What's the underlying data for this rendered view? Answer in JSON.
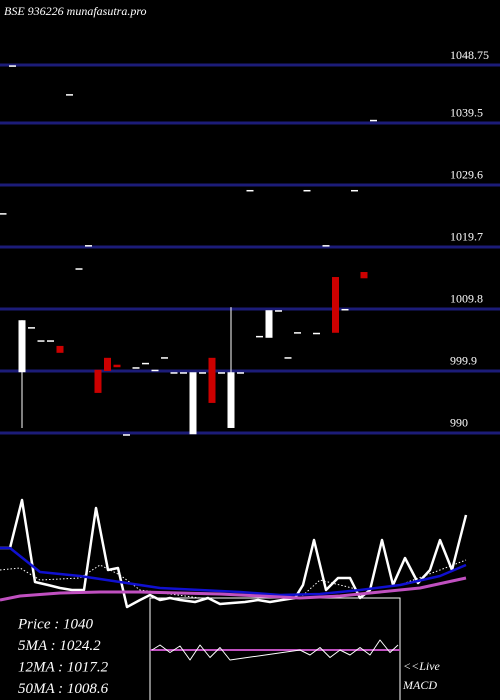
{
  "chart_data": [
    {
      "type": "candlestick",
      "title": "BSE 936226  munafasutra.pro",
      "open": [
        1025.1,
        1048.7,
        999.7,
        1006.9,
        1004.8,
        1004.8,
        1003.9,
        1044.1,
        1016.3,
        1020.0,
        1000.1,
        1002.0,
        1000.9,
        989.8,
        1000.5,
        1001.2,
        1000.1,
        1002.1,
        999.7,
        999.7,
        989.8,
        999.7,
        1002.0,
        999.7,
        990.8,
        999.7,
        1028.8,
        1005.5,
        1005.2,
        1009.6,
        1002.1,
        1006.1,
        1028.8,
        1006.0,
        1020.0,
        1014.9,
        1009.8,
        1028.8,
        1015.7,
        1040.0
      ],
      "high": [
        1025.1,
        1048.7,
        1008.0,
        1006.9,
        1004.8,
        1004.8,
        1003.9,
        1044.1,
        1016.3,
        1020.0,
        1000.1,
        1002.0,
        1000.9,
        989.8,
        1000.5,
        1001.2,
        1000.1,
        1002.1,
        999.7,
        999.7,
        999.7,
        999.7,
        1002.0,
        999.7,
        1010.1,
        999.7,
        1028.8,
        1005.5,
        1009.6,
        1009.6,
        1002.1,
        1006.1,
        1028.8,
        1006.0,
        1020.0,
        1014.9,
        1009.8,
        1028.8,
        1015.7,
        1040.0
      ],
      "low": [
        1025.1,
        1048.7,
        990.8,
        1006.9,
        1004.8,
        1004.8,
        1002.8,
        1044.1,
        1016.3,
        1020.0,
        996.4,
        999.9,
        1000.5,
        989.8,
        1000.5,
        1001.2,
        1000.1,
        1002.1,
        999.7,
        999.7,
        989.8,
        999.7,
        994.8,
        999.7,
        990.8,
        999.7,
        1028.8,
        1005.5,
        1005.2,
        1009.6,
        1002.1,
        1006.1,
        1028.8,
        1006.0,
        1020.0,
        1006.0,
        1009.8,
        1028.8,
        1014.7,
        1040.0
      ],
      "close": [
        1025.1,
        1048.7,
        1008.0,
        1006.9,
        1004.8,
        1004.8,
        1002.8,
        1044.1,
        1016.3,
        1020.0,
        996.4,
        999.9,
        1000.5,
        989.8,
        1000.5,
        1001.2,
        1000.1,
        1002.1,
        999.7,
        999.7,
        999.7,
        999.7,
        994.8,
        999.7,
        999.7,
        999.7,
        1028.8,
        1005.5,
        1009.6,
        1009.6,
        1002.1,
        1006.1,
        1028.8,
        1006.0,
        1020.0,
        1006.0,
        1009.8,
        1028.8,
        1014.7,
        1040.0
      ],
      "up_color": "#ffffff",
      "down_color": "#cc0000",
      "ylim": [
        988.88,
        1059.13
      ],
      "yticks": [
        1048.75,
        1039.5,
        1029.6,
        1019.7,
        1009.8,
        999.9,
        990
      ],
      "grid": true,
      "grid_color": "#1c1c78"
    },
    {
      "type": "line",
      "annotations": [
        "Price   : 1040",
        "5MA : 1024.2",
        "12MA : 1017.2",
        "50MA : 1008.6"
      ],
      "xlim": [
        0,
        500
      ],
      "ylim": [
        0,
        100
      ],
      "series": [
        {
          "color": "#ffffff",
          "width": 2.5,
          "x": [
            0,
            10,
            22,
            35,
            48,
            60,
            72,
            84,
            96,
            108,
            118,
            127,
            140,
            150,
            160,
            170,
            180,
            195,
            208,
            220,
            232,
            245,
            258,
            270,
            282,
            295,
            303,
            314,
            326,
            338,
            350,
            360,
            370,
            382,
            393,
            405,
            418,
            430,
            440,
            452,
            466
          ],
          "values": [
            51.7,
            51.7,
            91.7,
            23.3,
            20.8,
            18.3,
            16.7,
            16.7,
            85,
            33.3,
            35,
            2.5,
            8.3,
            12.5,
            8.3,
            10,
            8.3,
            6.7,
            10,
            5,
            5.8,
            6.7,
            8.3,
            6.7,
            8.3,
            10,
            20.8,
            58.3,
            16.7,
            26.7,
            26.7,
            10,
            16.7,
            58.3,
            20.8,
            43.3,
            22.5,
            33.3,
            58.3,
            33.3,
            79.2
          ]
        },
        {
          "color": "#ffffff",
          "width": 1,
          "dashed": true,
          "x": [
            0,
            20,
            40,
            80,
            100,
            120,
            140,
            200,
            300,
            320,
            360,
            400,
            440,
            466
          ],
          "values": [
            33.3,
            35,
            25,
            26.7,
            37.5,
            29.2,
            16.7,
            10,
            10,
            25,
            16.7,
            20.8,
            33.3,
            41.7
          ]
        },
        {
          "color": "#1010d0",
          "width": 2.5,
          "x": [
            0,
            10,
            40,
            80,
            120,
            160,
            200,
            240,
            280,
            320,
            360,
            400,
            440,
            466
          ],
          "values": [
            51.7,
            51.7,
            31.7,
            28.3,
            23.3,
            18.3,
            16.7,
            15,
            12.5,
            13.3,
            16.7,
            20.8,
            28.3,
            37.5
          ]
        },
        {
          "color": "#c050c0",
          "width": 3,
          "x": [
            0,
            20,
            60,
            100,
            140,
            180,
            220,
            260,
            300,
            340,
            380,
            420,
            466
          ],
          "values": [
            8.3,
            11.7,
            14.2,
            15,
            15,
            14.2,
            13.3,
            11.7,
            10,
            11.7,
            15,
            18.3,
            26.7
          ]
        }
      ]
    },
    {
      "type": "line",
      "annotations": [
        "<<Live",
        "MACD"
      ],
      "xlim": [
        0,
        500
      ],
      "ylim": [
        -1,
        1
      ],
      "series": [
        {
          "color": "#ffffff",
          "width": 1,
          "x": [
            152,
            160,
            170,
            180,
            190,
            200,
            210,
            220,
            230,
            300,
            310,
            320,
            330,
            340,
            350,
            360,
            370,
            380,
            390,
            398
          ],
          "values": [
            0,
            0.1,
            -0.05,
            0.08,
            -0.2,
            0.1,
            -0.15,
            0.05,
            -0.2,
            0,
            -0.1,
            0.05,
            -0.15,
            0,
            -0.1,
            0.05,
            -0.1,
            0.2,
            -0.05,
            0.1
          ]
        }
      ]
    }
  ]
}
